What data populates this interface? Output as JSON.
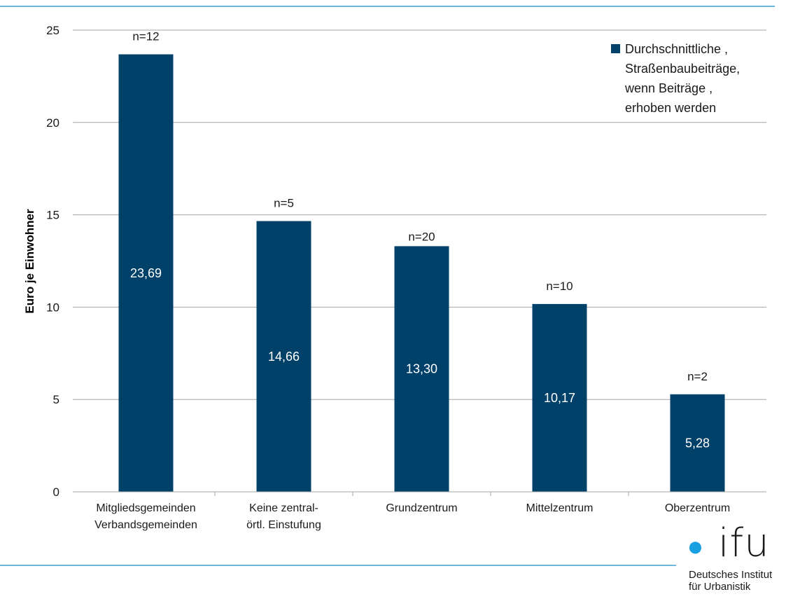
{
  "colors": {
    "bar": "#004169",
    "accent_line": "#3b9fd1",
    "grid": "#a6a6a6",
    "logo_dot": "#1a9fe0"
  },
  "chart_data": {
    "type": "bar",
    "categories": [
      [
        "Mitgliedsgemeinden",
        "Verbandsgemeinden"
      ],
      [
        "Keine zentral-",
        "örtl. Einstufung"
      ],
      [
        "Grundzentrum"
      ],
      [
        "Mittelzentrum"
      ],
      [
        "Oberzentrum"
      ]
    ],
    "series": [
      {
        "name": "Durchschnittliche , Straßenbaubeiträge, wenn Beiträge , erhoben werden",
        "values": [
          23.69,
          14.66,
          13.3,
          10.17,
          5.28
        ],
        "value_labels": [
          "23,69",
          "14,66",
          "13,30",
          "10,17",
          "5,28"
        ]
      }
    ],
    "n_labels": [
      "n=12",
      "n=5",
      "n=20",
      "n=10",
      "n=2"
    ],
    "ylabel": "Euro je Einwohner",
    "xlabel": "",
    "ylim": [
      0,
      25
    ],
    "yticks": [
      0,
      5,
      10,
      15,
      20,
      25
    ],
    "grid": true,
    "legend": {
      "position": "top-right",
      "lines": [
        "Durchschnittliche ,",
        "Straßenbaubeiträge,",
        "wenn Beiträge ,",
        "erhoben werden"
      ]
    }
  },
  "logo": {
    "text": "ifu",
    "lines": [
      "Deutsches Institut",
      "für Urbanistik"
    ]
  }
}
